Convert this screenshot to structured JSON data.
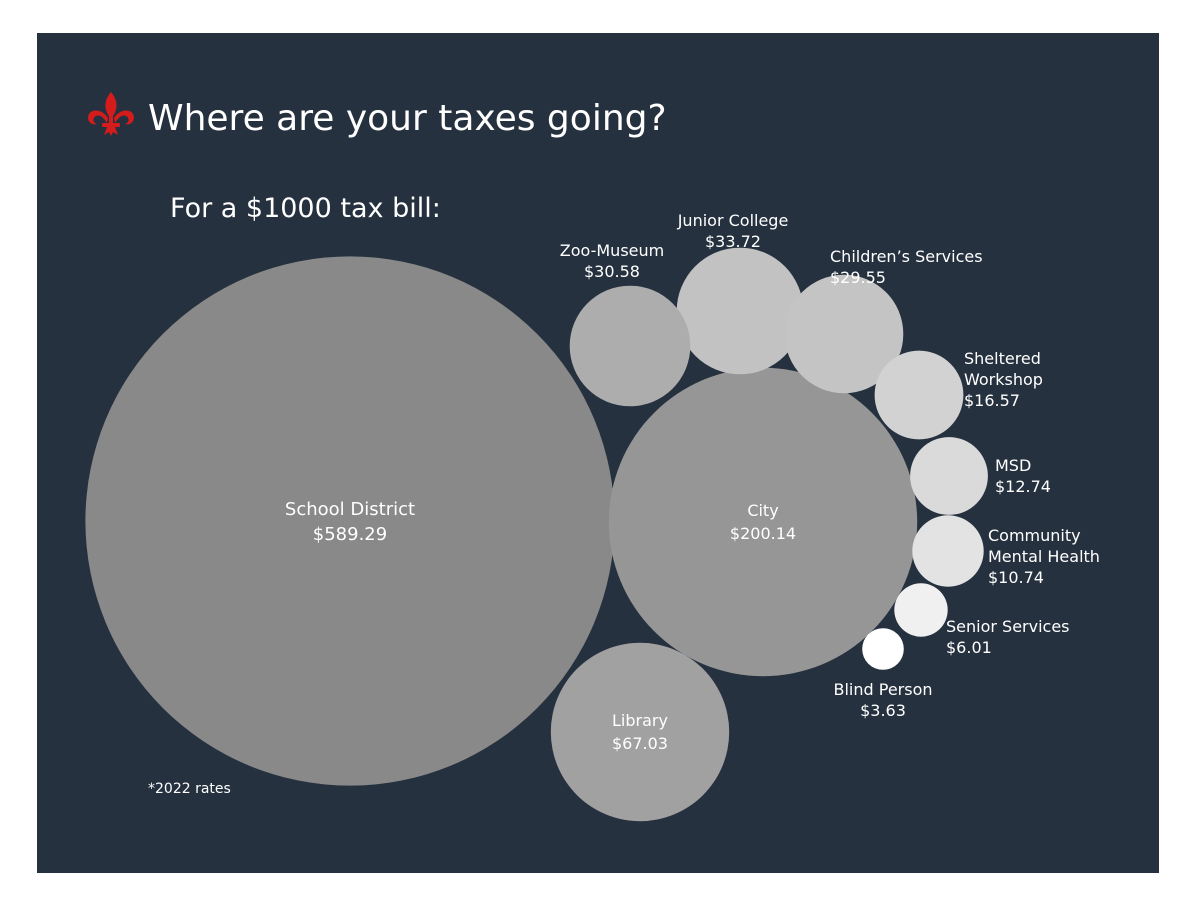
{
  "chart_data": {
    "type": "bubble",
    "title": "Where are your taxes going?",
    "subtitle": "For a $1000 tax bill:",
    "footnote": "*2022 rates",
    "logo": "fleur-de-lis-icon",
    "unit": "$",
    "colors": {
      "background": "#25313e",
      "title_text": "#ffffff",
      "logo": "#d51c1c"
    },
    "items": [
      {
        "name": "School District",
        "value": 589.29,
        "value_label": "$589.29",
        "color": "#898989",
        "label_lines": [
          "School District"
        ]
      },
      {
        "name": "City",
        "value": 200.14,
        "value_label": "$200.14",
        "color": "#969696",
        "label_lines": [
          "City"
        ]
      },
      {
        "name": "Library",
        "value": 67.03,
        "value_label": "$67.03",
        "color": "#a1a1a1",
        "label_lines": [
          "Library"
        ]
      },
      {
        "name": "Junior College",
        "value": 33.72,
        "value_label": "$33.72",
        "color": "#c2c2c2",
        "label_lines": [
          "Junior College"
        ]
      },
      {
        "name": "Zoo-Museum",
        "value": 30.58,
        "value_label": "$30.58",
        "color": "#adadad",
        "label_lines": [
          "Zoo-Museum"
        ]
      },
      {
        "name": "Children's Services",
        "value": 29.55,
        "value_label": "$29.55",
        "color": "#c4c4c4",
        "label_lines": [
          "Children’s Services"
        ]
      },
      {
        "name": "Sheltered Workshop",
        "value": 16.57,
        "value_label": "$16.57",
        "color": "#d2d2d2",
        "label_lines": [
          "Sheltered",
          "Workshop"
        ]
      },
      {
        "name": "MSD",
        "value": 12.74,
        "value_label": "$12.74",
        "color": "#dadada",
        "label_lines": [
          "MSD"
        ]
      },
      {
        "name": "Community Mental Health",
        "value": 10.74,
        "value_label": "$10.74",
        "color": "#e3e3e3",
        "label_lines": [
          "Community",
          "Mental Health"
        ]
      },
      {
        "name": "Senior Services",
        "value": 6.01,
        "value_label": "$6.01",
        "color": "#f0f0f0",
        "label_lines": [
          "Senior Services"
        ]
      },
      {
        "name": "Blind Person",
        "value": 3.63,
        "value_label": "$3.63",
        "color": "#ffffff",
        "label_lines": [
          "Blind Person"
        ]
      }
    ]
  }
}
